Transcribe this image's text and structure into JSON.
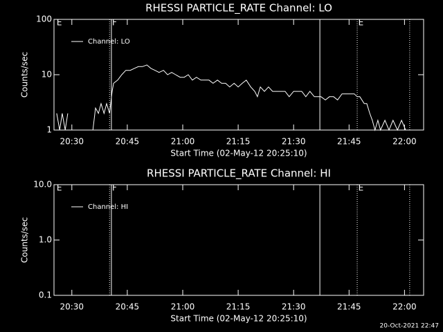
{
  "chart_data": [
    {
      "type": "line",
      "title": "RHESSI PARTICLE_RATE Channel: LO",
      "xlabel": "Start Time (02-May-12 20:25:10)",
      "ylabel": "Counts/sec",
      "log": true,
      "legend": "upper left",
      "xlim": [
        1225.17,
        1325.17
      ],
      "xticks": [
        {
          "value": 1230,
          "label": "20:30"
        },
        {
          "value": 1245,
          "label": "20:45"
        },
        {
          "value": 1260,
          "label": "21:00"
        },
        {
          "value": 1275,
          "label": "21:15"
        },
        {
          "value": 1290,
          "label": "21:30"
        },
        {
          "value": 1305,
          "label": "21:45"
        },
        {
          "value": 1320,
          "label": "22:00"
        }
      ],
      "ylim": [
        1,
        100
      ],
      "yticks": [
        1,
        10,
        100
      ],
      "vlines": [
        {
          "x": 1240.2,
          "style": "dotted"
        },
        {
          "x": 1240.7,
          "style": "solid"
        },
        {
          "x": 1297.1,
          "style": "solid"
        },
        {
          "x": 1307.2,
          "style": "dotted"
        },
        {
          "x": 1321.4,
          "style": "dotted"
        }
      ],
      "annotations": [
        {
          "text": "E",
          "x": 1225.9
        },
        {
          "text": "F",
          "x": 1240.9
        },
        {
          "text": "E",
          "x": 1307.5
        }
      ],
      "series": [
        {
          "name": "Channel: LO",
          "color": "#ffffff",
          "x": [
            1225.9,
            1226.7,
            1227.4,
            1228.2,
            1228.9,
            1232.3,
            1235.7,
            1236.4,
            1237.2,
            1237.9,
            1238.7,
            1239.4,
            1240.2,
            1240.9,
            1241.3,
            1242.4,
            1243.5,
            1244.6,
            1245.8,
            1246.9,
            1248.0,
            1249.1,
            1250.3,
            1251.4,
            1252.5,
            1253.6,
            1254.8,
            1255.9,
            1257.0,
            1258.1,
            1259.3,
            1260.4,
            1261.5,
            1262.6,
            1263.7,
            1264.9,
            1266.0,
            1267.1,
            1268.2,
            1269.4,
            1270.5,
            1271.6,
            1272.7,
            1273.9,
            1275.0,
            1276.1,
            1277.2,
            1278.4,
            1279.5,
            1280.2,
            1281.0,
            1282.1,
            1283.2,
            1284.3,
            1285.5,
            1286.6,
            1287.7,
            1288.8,
            1290.0,
            1291.1,
            1292.2,
            1293.3,
            1294.4,
            1295.6,
            1296.7,
            1297.4,
            1298.6,
            1299.7,
            1300.8,
            1301.9,
            1303.1,
            1304.2,
            1305.3,
            1306.4,
            1307.2,
            1307.9,
            1309.1,
            1309.8,
            1310.6,
            1311.3,
            1312.0,
            1312.8,
            1313.5,
            1314.7,
            1315.8,
            1316.9,
            1318.1,
            1319.2,
            1320.3
          ],
          "values": [
            2,
            1,
            2,
            1,
            2,
            null,
            1,
            2.5,
            2,
            3,
            2,
            3,
            2,
            5,
            7,
            8,
            10,
            12,
            12,
            13,
            14,
            14,
            15,
            13,
            12,
            11,
            12,
            10,
            11,
            10,
            9,
            9,
            10,
            8,
            9,
            8,
            8,
            8,
            7,
            8,
            7,
            7,
            6,
            7,
            6,
            7,
            8,
            6,
            5,
            4,
            6,
            5,
            6,
            5,
            5,
            5,
            5,
            4,
            5,
            5,
            5,
            4,
            5,
            4,
            4,
            4,
            3.5,
            4,
            4,
            3.5,
            4.5,
            4.5,
            4.5,
            4.5,
            4,
            4,
            3,
            3,
            2,
            1.5,
            1,
            1.5,
            1,
            1.5,
            1,
            1.5,
            1,
            1.5,
            1
          ]
        }
      ]
    },
    {
      "type": "line",
      "title": "RHESSI PARTICLE_RATE Channel: HI",
      "xlabel": "Start Time (02-May-12 20:25:10)",
      "ylabel": "Counts/sec",
      "log": true,
      "legend": "upper left",
      "xlim": [
        1225.17,
        1325.17
      ],
      "xticks": [
        {
          "value": 1230,
          "label": "20:30"
        },
        {
          "value": 1245,
          "label": "20:45"
        },
        {
          "value": 1260,
          "label": "21:00"
        },
        {
          "value": 1275,
          "label": "21:15"
        },
        {
          "value": 1290,
          "label": "21:30"
        },
        {
          "value": 1305,
          "label": "21:45"
        },
        {
          "value": 1320,
          "label": "22:00"
        }
      ],
      "ylim": [
        0.1,
        10
      ],
      "yticks": [
        0.1,
        {
          "value": 1,
          "label": "1.0"
        },
        {
          "value": 10,
          "label": "10.0"
        }
      ],
      "vlines": [
        {
          "x": 1240.2,
          "style": "dotted"
        },
        {
          "x": 1240.7,
          "style": "solid"
        },
        {
          "x": 1297.1,
          "style": "solid"
        },
        {
          "x": 1307.2,
          "style": "dotted"
        },
        {
          "x": 1321.4,
          "style": "dotted"
        }
      ],
      "annotations": [
        {
          "text": "E",
          "x": 1225.9
        },
        {
          "text": "F",
          "x": 1240.9
        },
        {
          "text": "E",
          "x": 1307.5
        }
      ],
      "series": [
        {
          "name": "Channel: HI",
          "color": "#ffffff",
          "x": [],
          "values": []
        }
      ]
    }
  ],
  "footer": "20-Oct-2021 22:47"
}
